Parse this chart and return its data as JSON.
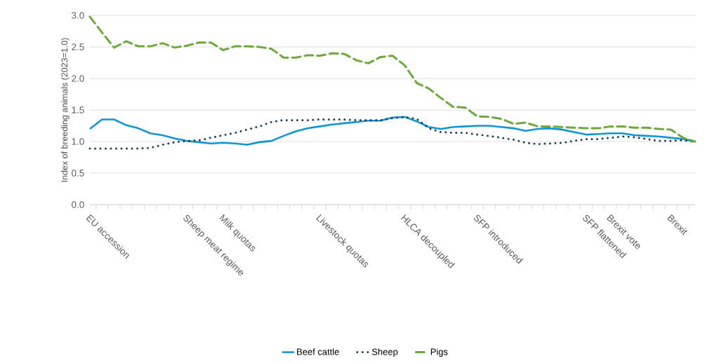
{
  "chart_data": {
    "type": "line",
    "ylabel": "Index of breeding animals (2023=1.0)",
    "categories": [
      "EU accession",
      null,
      null,
      null,
      null,
      null,
      null,
      null,
      "Sheep meat regime",
      null,
      null,
      "Milk quotas",
      null,
      null,
      null,
      null,
      null,
      null,
      null,
      "Livestock quotas",
      null,
      null,
      null,
      null,
      null,
      null,
      "HLCA decoupled",
      null,
      null,
      null,
      null,
      null,
      "SFP introduced",
      null,
      null,
      null,
      null,
      null,
      null,
      null,
      null,
      "SFP flattened",
      null,
      "Brexit vote",
      null,
      null,
      null,
      null,
      "Brexit",
      null,
      null
    ],
    "series": [
      {
        "name": "Beef cattle",
        "color": "#0f95d7",
        "line_style": "solid",
        "values": [
          1.2,
          1.35,
          1.35,
          1.26,
          1.21,
          1.13,
          1.1,
          1.05,
          1.01,
          0.99,
          0.97,
          0.98,
          0.97,
          0.95,
          0.99,
          1.01,
          1.09,
          1.16,
          1.21,
          1.24,
          1.27,
          1.29,
          1.31,
          1.33,
          1.33,
          1.38,
          1.39,
          1.32,
          1.23,
          1.2,
          1.23,
          1.24,
          1.25,
          1.25,
          1.23,
          1.21,
          1.17,
          1.2,
          1.21,
          1.19,
          1.15,
          1.11,
          1.12,
          1.13,
          1.13,
          1.1,
          1.09,
          1.08,
          1.06,
          1.04,
          1.0
        ]
      },
      {
        "name": "Sheep",
        "color": "#1e3b4c",
        "line_style": "dotted",
        "values": [
          0.89,
          0.89,
          0.89,
          0.89,
          0.89,
          0.9,
          0.95,
          0.99,
          1.01,
          1.02,
          1.06,
          1.1,
          1.14,
          1.19,
          1.24,
          1.31,
          1.34,
          1.34,
          1.34,
          1.35,
          1.35,
          1.35,
          1.34,
          1.34,
          1.34,
          1.37,
          1.39,
          1.36,
          1.21,
          1.15,
          1.14,
          1.14,
          1.11,
          1.09,
          1.06,
          1.03,
          0.98,
          0.96,
          0.97,
          0.98,
          1.01,
          1.04,
          1.04,
          1.06,
          1.08,
          1.07,
          1.04,
          1.01,
          1.01,
          1.02,
          1.0
        ]
      },
      {
        "name": "Pigs",
        "color": "#6fa83a",
        "line_style": "dashed",
        "values": [
          2.98,
          2.73,
          2.49,
          2.59,
          2.51,
          2.51,
          2.56,
          2.49,
          2.52,
          2.57,
          2.57,
          2.45,
          2.51,
          2.51,
          2.5,
          2.47,
          2.33,
          2.33,
          2.37,
          2.36,
          2.4,
          2.39,
          2.29,
          2.24,
          2.34,
          2.36,
          2.21,
          1.93,
          1.84,
          1.69,
          1.55,
          1.54,
          1.4,
          1.39,
          1.36,
          1.28,
          1.3,
          1.24,
          1.24,
          1.23,
          1.22,
          1.21,
          1.21,
          1.24,
          1.24,
          1.22,
          1.22,
          1.2,
          1.19,
          1.06,
          1.0
        ]
      }
    ],
    "ylim": [
      0,
      3
    ],
    "yticks": [
      {
        "value": 0,
        "label": "0.0"
      },
      {
        "value": 0.5,
        "label": "0.5"
      },
      {
        "value": 1,
        "label": "1.0"
      },
      {
        "value": 1.5,
        "label": "1.5"
      },
      {
        "value": 2,
        "label": "2.0"
      },
      {
        "value": 2.5,
        "label": "2.5"
      },
      {
        "value": 3,
        "label": "3.0"
      }
    ],
    "grid": "y",
    "legend": "bottom",
    "marker": "none"
  }
}
